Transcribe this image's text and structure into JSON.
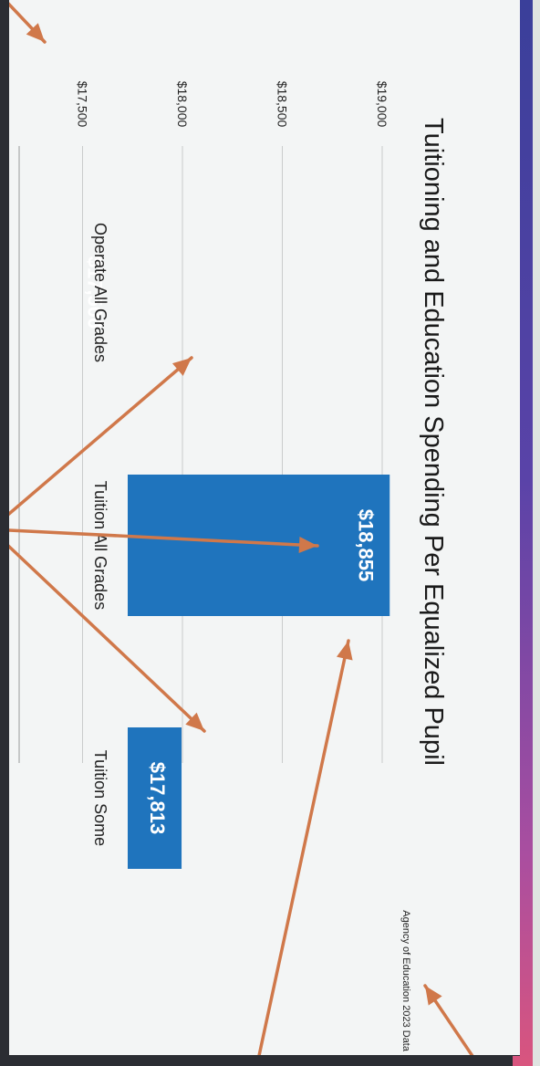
{
  "colors": {
    "bar": "#1f74bd",
    "grid": "#c9cbcb",
    "annotation_arrow": "#d0784a",
    "background": "#f3f5f5",
    "frame": "#2b2d33"
  },
  "chart_data": {
    "type": "bar",
    "title": "Tuitioning and Education Spending Per Equalized Pupil",
    "source_note": "Agency of Education 2023 Data",
    "categories": [
      "Operate All Grades",
      "Tuition All Grades",
      "Tuition Some"
    ],
    "values": [
      17500,
      18855,
      17813
    ],
    "value_labels": [
      "$17,500",
      "$18,855",
      "$17,813"
    ],
    "y_ticks": [
      17500,
      18000,
      18500,
      19000
    ],
    "y_tick_labels": [
      "$17,500",
      "$18,000",
      "$18,500",
      "$19,000"
    ],
    "ylim": [
      17000,
      19000
    ],
    "grid": true,
    "orientation": "vertical bars, page photographed rotated 90 degrees",
    "legend": "none"
  }
}
